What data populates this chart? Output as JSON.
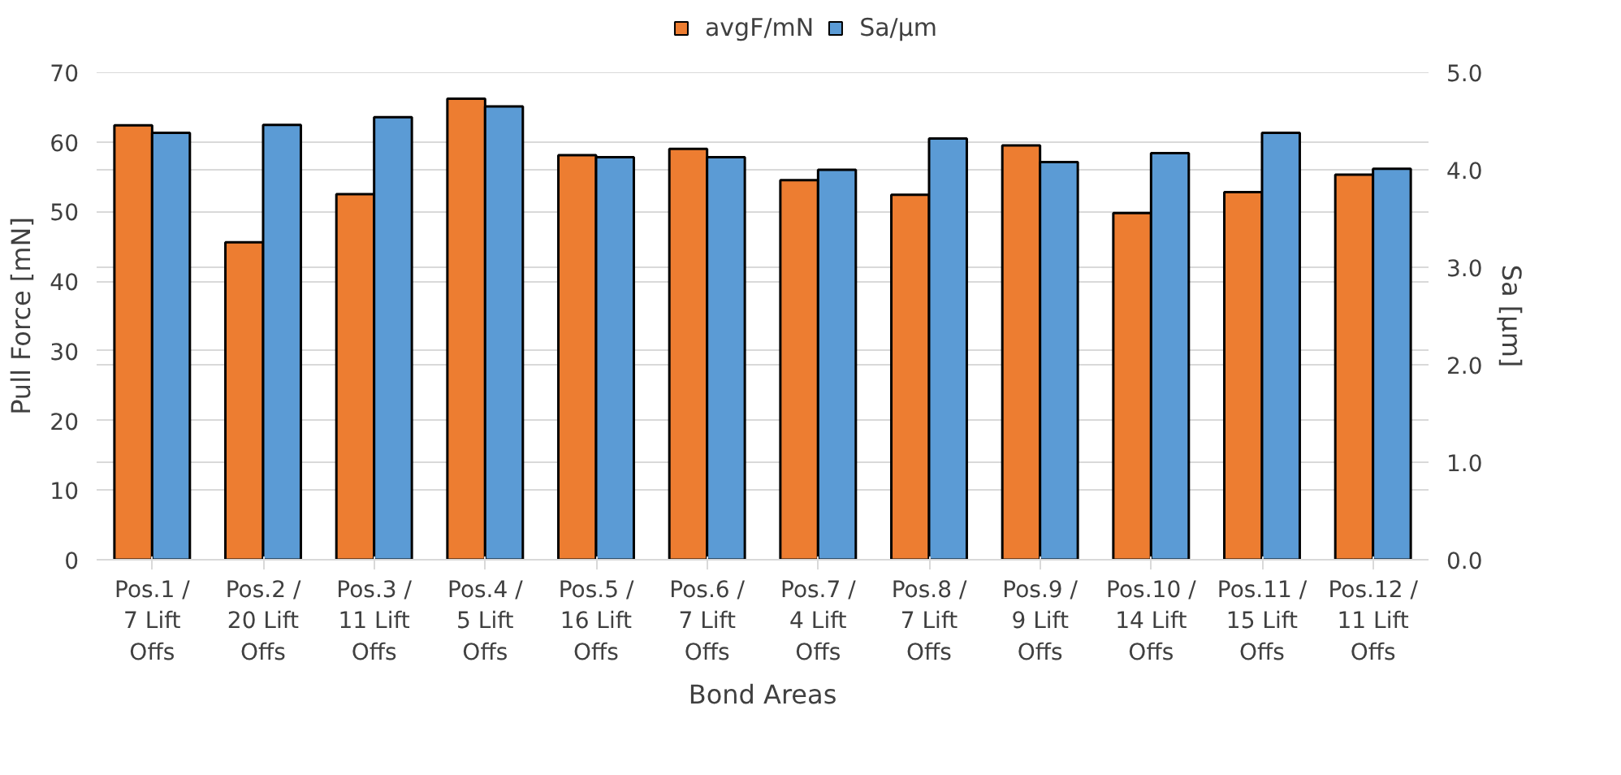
{
  "chart_data": {
    "type": "bar",
    "xlabel": "Bond Areas",
    "ylabel": "Pull Force [mN]",
    "y2label": "Sa [µm]",
    "categories": [
      "Pos.1 /\n7 Lift\nOffs",
      "Pos.2 /\n20 Lift\nOffs",
      "Pos.3 /\n11 Lift\nOffs",
      "Pos.4 /\n5 Lift\nOffs",
      "Pos.5 /\n16 Lift\nOffs",
      "Pos.6 /\n7 Lift\nOffs",
      "Pos.7 /\n4 Lift\nOffs",
      "Pos.8 /\n7 Lift\nOffs",
      "Pos.9 /\n9 Lift\nOffs",
      "Pos.10 /\n14 Lift\nOffs",
      "Pos.11 /\n15 Lift\nOffs",
      "Pos.12 /\n11 Lift\nOffs"
    ],
    "series": [
      {
        "name": "avgF/mN",
        "color": "#ed7d31",
        "values": [
          62.4,
          45.6,
          52.5,
          66.2,
          58.1,
          59.0,
          54.5,
          52.4,
          59.5,
          49.8,
          52.8,
          55.3
        ]
      },
      {
        "name": "Sa/µm",
        "color": "#5b9bd5",
        "axis": "y2",
        "values": [
          4.38,
          4.46,
          4.54,
          4.65,
          4.13,
          4.13,
          4.0,
          4.32,
          4.08,
          4.17,
          4.38,
          4.01
        ]
      }
    ],
    "ylim": [
      0,
      70
    ],
    "yticks": [
      0,
      10,
      20,
      30,
      40,
      50,
      60,
      70
    ],
    "y2lim": [
      0,
      5
    ],
    "y2ticks": [
      {
        "value": 0,
        "label": "0.0"
      },
      {
        "value": 1,
        "label": "1.0"
      },
      {
        "value": 2,
        "label": "2.0"
      },
      {
        "value": 3,
        "label": "3.0"
      },
      {
        "value": 4,
        "label": "4.0"
      },
      {
        "value": 5,
        "label": "5.0"
      }
    ],
    "grid": "y",
    "legend": "top"
  }
}
